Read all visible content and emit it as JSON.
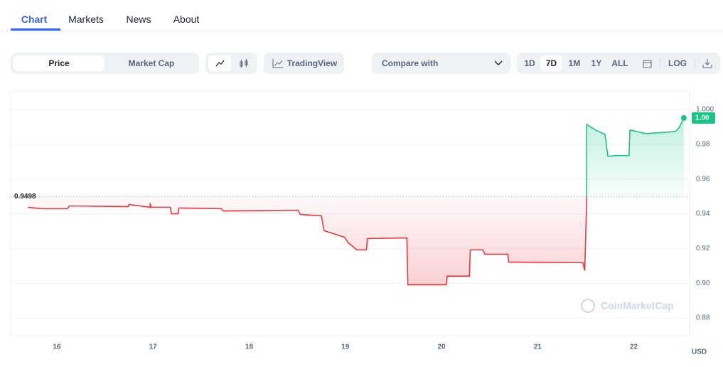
{
  "tabs": [
    "Chart",
    "Markets",
    "News",
    "About"
  ],
  "toolbar": {
    "view_toggle": [
      "Price",
      "Market Cap"
    ],
    "tradingview": "TradingView",
    "compare": "Compare with",
    "ranges": [
      "1D",
      "7D",
      "1M",
      "1Y",
      "ALL"
    ],
    "log": "LOG"
  },
  "chart_data": {
    "type": "line",
    "x": [
      15.7,
      15.85,
      16.11,
      16.13,
      16.74,
      16.75,
      16.97,
      16.97,
      16.98,
      17.18,
      17.19,
      17.26,
      17.27,
      17.71,
      17.73,
      18.51,
      18.53,
      18.75,
      18.78,
      18.99,
      19.03,
      19.12,
      19.22,
      19.23,
      19.64,
      19.65,
      20.05,
      20.06,
      20.29,
      20.3,
      20.43,
      20.45,
      20.69,
      20.7,
      21.47,
      21.49,
      21.51,
      21.51,
      21.6,
      21.7,
      21.73,
      21.82,
      21.95,
      21.96,
      22.13,
      22.43,
      22.47,
      22.52
    ],
    "values": [
      0.9437,
      0.9429,
      0.9429,
      0.9445,
      0.9441,
      0.9453,
      0.9437,
      0.9461,
      0.9437,
      0.9437,
      0.94,
      0.94,
      0.9433,
      0.9429,
      0.9416,
      0.942,
      0.9396,
      0.9388,
      0.9302,
      0.9265,
      0.9233,
      0.9192,
      0.9192,
      0.9257,
      0.9261,
      0.8992,
      0.8992,
      0.9041,
      0.9041,
      0.9192,
      0.9192,
      0.9167,
      0.9167,
      0.9122,
      0.9118,
      0.9073,
      0.9486,
      0.9914,
      0.9882,
      0.9857,
      0.9731,
      0.9735,
      0.9735,
      0.9882,
      0.9861,
      0.9873,
      0.9894,
      0.9951
    ],
    "up_color": "#16c784",
    "down_color": "#ea3943",
    "reference": 0.9498,
    "current_price": {
      "value": 0.9951,
      "label": "1.00"
    },
    "xlim": [
      15.52,
      22.58
    ],
    "xticks": [
      16,
      17,
      18,
      19,
      20,
      21,
      22
    ],
    "ylim": [
      0.8698,
      1.0106
    ],
    "yticks": [
      0.88,
      {
        "value": 0.9,
        "label": "0.90"
      },
      0.92,
      0.94,
      0.96,
      0.98,
      {
        "value": 1,
        "label": "1.000"
      }
    ],
    "grid": true,
    "currency": "USD",
    "watermark": "CoinMarketCap"
  }
}
